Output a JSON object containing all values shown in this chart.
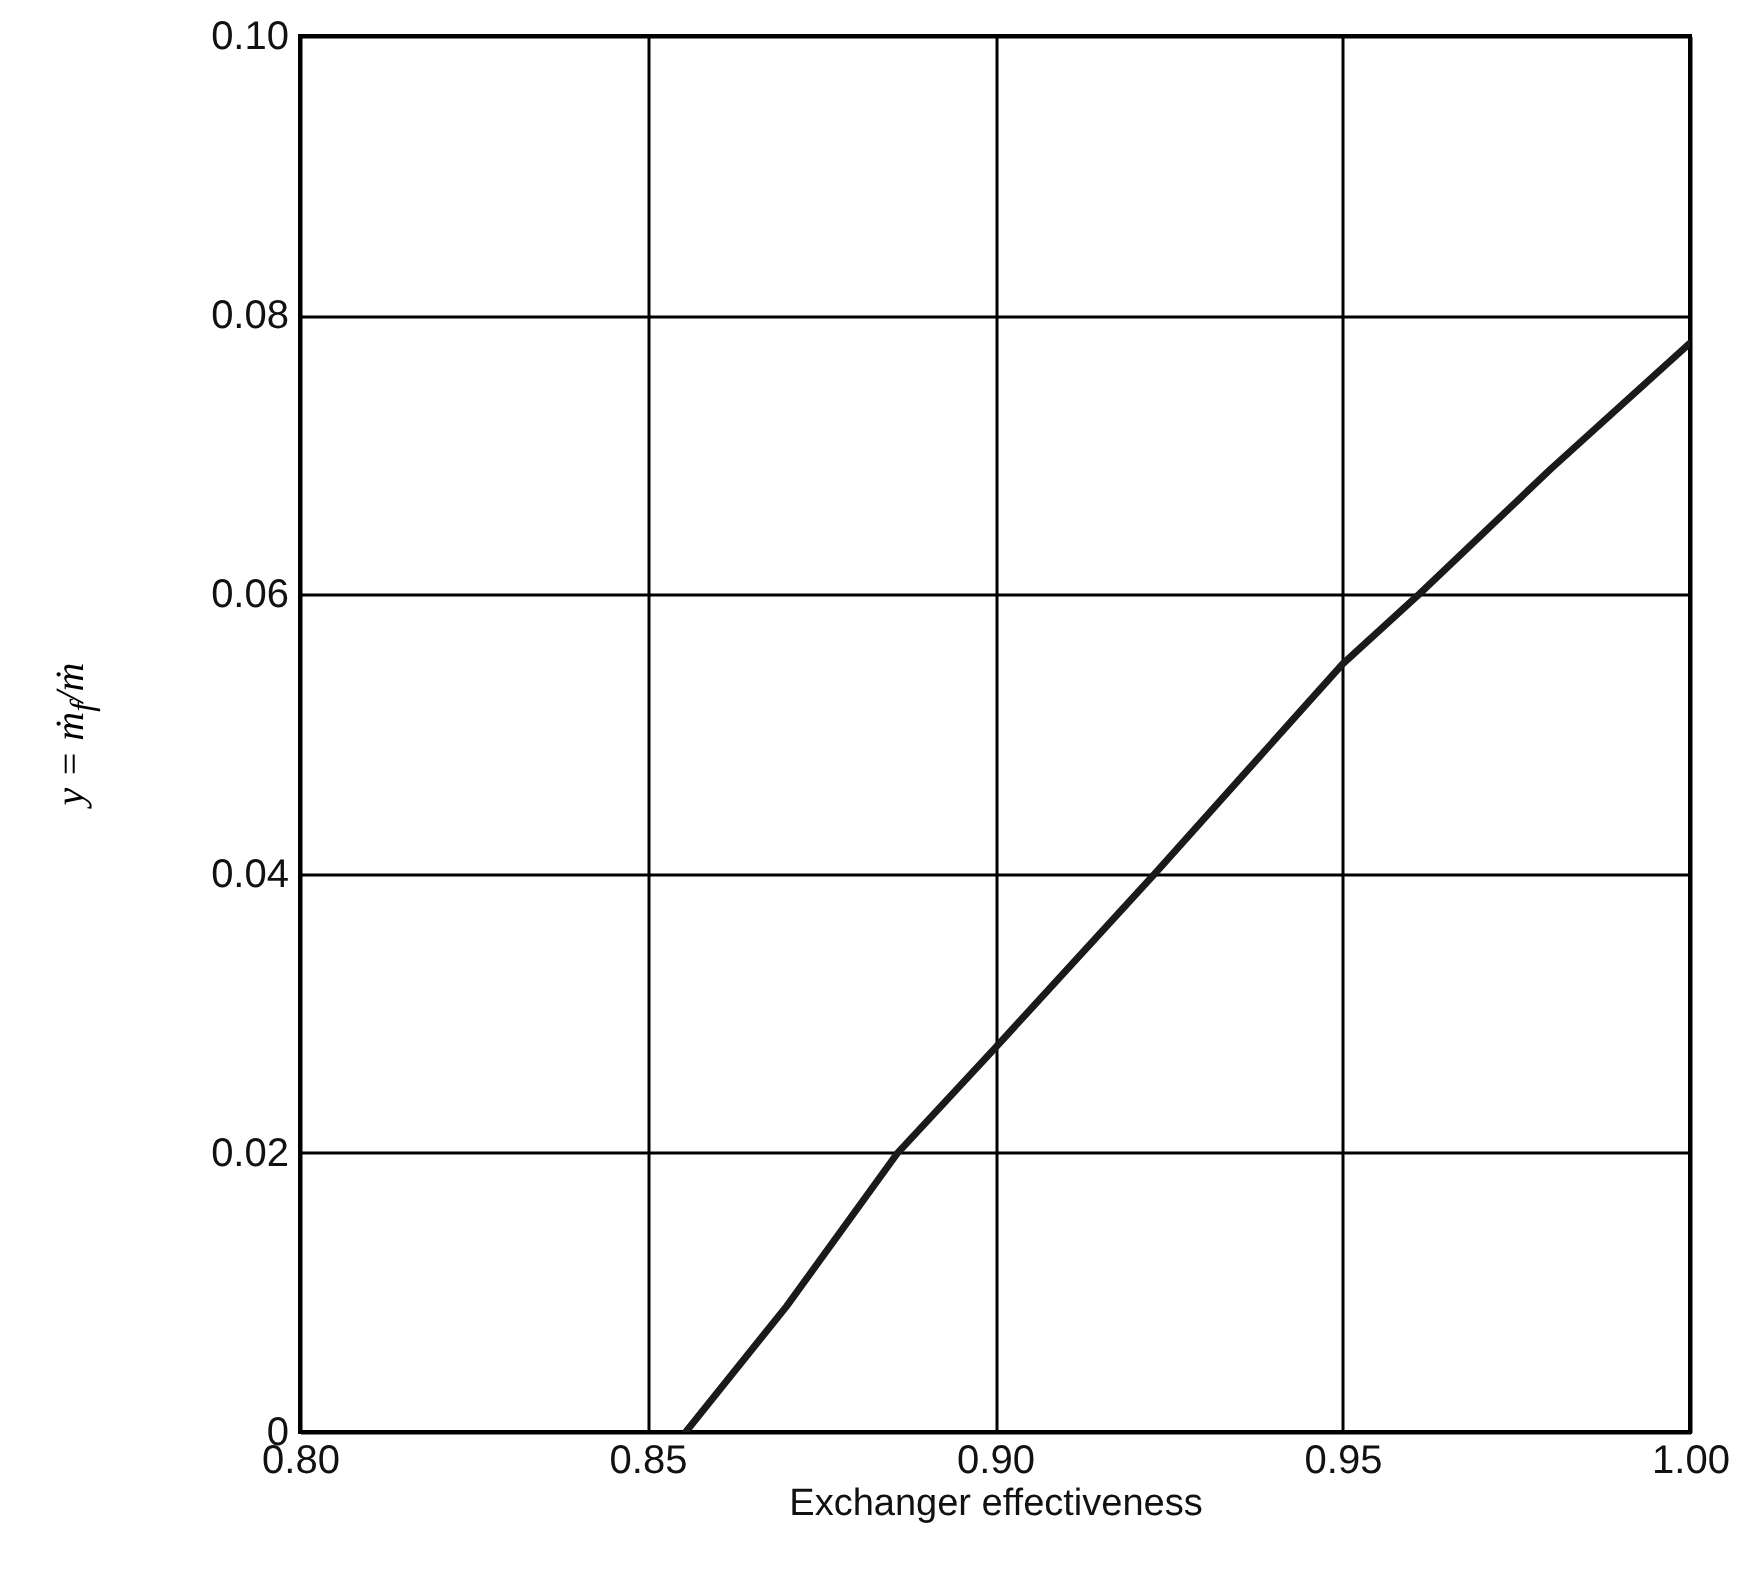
{
  "chart_data": {
    "type": "line",
    "xlabel": "Exchanger effectiveness",
    "ylabel": "y = ṁ$_{f}$/ṁ",
    "x": [
      0.8555,
      0.87,
      0.886,
      0.9,
      0.923,
      0.95,
      0.961,
      0.98,
      1.0
    ],
    "series": [
      {
        "color": "#1a1a1a",
        "values": [
          0,
          0.009,
          0.02,
          0.0275,
          0.04,
          0.055,
          0.06,
          0.069,
          0.078
        ]
      }
    ],
    "xlim": [
      0.8,
      1.0
    ],
    "xticks": [
      {
        "value": 0.8,
        "label": "0.80"
      },
      {
        "value": 0.85,
        "label": "0.85"
      },
      {
        "value": 0.9,
        "label": "0.90"
      },
      {
        "value": 0.95,
        "label": "0.95"
      },
      {
        "value": 1.0,
        "label": "1.00"
      }
    ],
    "ylim": [
      0,
      0.1
    ],
    "yticks": [
      0,
      0.02,
      0.04,
      0.06,
      0.08,
      {
        "value": 0.1,
        "label": "0.10"
      }
    ],
    "grid": true,
    "line_style": "solid",
    "marker": "none"
  }
}
